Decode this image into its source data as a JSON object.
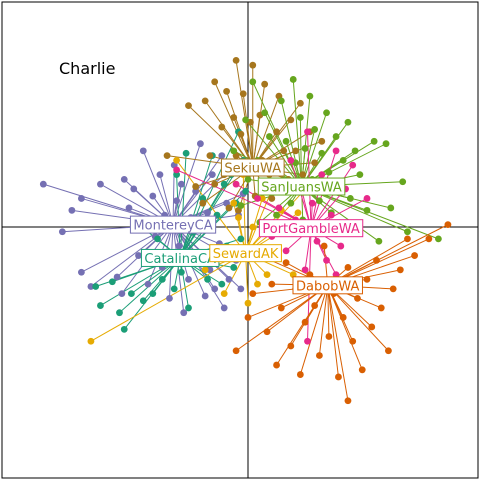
{
  "chart_data": {
    "type": "scatter",
    "title": "Charlie",
    "xlabel": "",
    "ylabel": "",
    "xlim": [
      -1,
      1
    ],
    "ylim": [
      -1,
      1
    ],
    "axes_cross": [
      0,
      0
    ],
    "grid": false,
    "series": [
      {
        "name": "MontereyCA",
        "color": "#7570b3",
        "centroid": [
          -0.315,
          0.01
        ],
        "points": [
          [
            -0.86,
            0.18
          ],
          [
            -0.78,
            -0.02
          ],
          [
            -0.74,
            0.07
          ],
          [
            -0.7,
            0.12
          ],
          [
            -0.7,
            -0.19
          ],
          [
            -0.62,
            0.18
          ],
          [
            -0.66,
            -0.25
          ],
          [
            -0.55,
            -0.21
          ],
          [
            -0.52,
            0.2
          ],
          [
            -0.5,
            0.08
          ],
          [
            -0.53,
            -0.28
          ],
          [
            -0.48,
            0.16
          ],
          [
            -0.46,
            -0.12
          ],
          [
            -0.44,
            0.32
          ],
          [
            -0.42,
            -0.24
          ],
          [
            -0.4,
            0.13
          ],
          [
            -0.39,
            -0.04
          ],
          [
            -0.37,
            0.22
          ],
          [
            -0.36,
            -0.17
          ],
          [
            -0.35,
            0.05
          ],
          [
            -0.33,
            -0.3
          ],
          [
            -0.31,
            0.26
          ],
          [
            -0.3,
            0.11
          ],
          [
            -0.29,
            -0.08
          ],
          [
            -0.28,
            0.18
          ],
          [
            -0.27,
            -0.36
          ],
          [
            -0.25,
            -0.22
          ],
          [
            -0.24,
            0.04
          ],
          [
            -0.22,
            0.15
          ],
          [
            -0.21,
            -0.13
          ],
          [
            -0.2,
            0.35
          ],
          [
            -0.18,
            -0.29
          ],
          [
            -0.17,
            0.06
          ],
          [
            -0.16,
            -0.18
          ],
          [
            -0.15,
            0.22
          ],
          [
            -0.14,
            -0.26
          ],
          [
            -0.12,
            -0.07
          ],
          [
            -0.11,
            0.3
          ],
          [
            -0.1,
            -0.34
          ],
          [
            -0.09,
            0.1
          ],
          [
            -0.08,
            -0.22
          ],
          [
            -0.07,
            0.25
          ],
          [
            -0.05,
            -0.14
          ],
          [
            -0.04,
            0.05
          ],
          [
            -0.03,
            -0.26
          ],
          [
            -0.02,
            0.14
          ]
        ]
      },
      {
        "name": "CatalinaCA",
        "color": "#1b9e77",
        "centroid": [
          -0.285,
          -0.13
        ],
        "points": [
          [
            -0.64,
            -0.25
          ],
          [
            -0.62,
            -0.33
          ],
          [
            -0.57,
            -0.23
          ],
          [
            -0.54,
            -0.36
          ],
          [
            -0.52,
            -0.43
          ],
          [
            -0.49,
            -0.28
          ],
          [
            -0.47,
            0.02
          ],
          [
            -0.44,
            -0.31
          ],
          [
            -0.4,
            -0.28
          ],
          [
            -0.38,
            -0.05
          ],
          [
            -0.36,
            -0.22
          ],
          [
            -0.34,
            -0.12
          ],
          [
            -0.31,
            -0.26
          ],
          [
            -0.3,
            0.22
          ],
          [
            -0.28,
            -0.19
          ],
          [
            -0.26,
            0.31
          ],
          [
            -0.25,
            -0.34
          ],
          [
            -0.23,
            -0.02
          ],
          [
            -0.21,
            -0.15
          ],
          [
            -0.19,
            0.12
          ],
          [
            -0.17,
            -0.22
          ],
          [
            -0.15,
            0.3
          ],
          [
            -0.13,
            0.05
          ],
          [
            -0.11,
            -0.24
          ],
          [
            -0.1,
            0.18
          ],
          [
            -0.09,
            -0.08
          ],
          [
            -0.07,
            0.22
          ],
          [
            -0.06,
            -0.17
          ],
          [
            -0.05,
            0.1
          ],
          [
            -0.04,
            0.4
          ],
          [
            -0.03,
            -0.05
          ],
          [
            -0.02,
            0.28
          ],
          [
            -0.01,
            0.15
          ]
        ]
      },
      {
        "name": "SewardAK",
        "color": "#e6ab02",
        "centroid": [
          -0.01,
          -0.11
        ],
        "points": [
          [
            -0.66,
            -0.48
          ],
          [
            -0.3,
            0.28
          ],
          [
            -0.18,
            -0.18
          ],
          [
            -0.1,
            -0.28
          ],
          [
            -0.06,
            0.1
          ],
          [
            -0.04,
            0.04
          ],
          [
            -0.02,
            0.22
          ],
          [
            0.0,
            -0.32
          ],
          [
            0.02,
            0.0
          ],
          [
            0.04,
            -0.24
          ],
          [
            0.06,
            0.12
          ],
          [
            0.08,
            -0.2
          ],
          [
            0.11,
            0.18
          ],
          [
            0.14,
            0.07
          ],
          [
            0.17,
            0.0
          ],
          [
            0.19,
            -0.2
          ],
          [
            0.21,
            0.06
          ],
          [
            0.27,
            0.19
          ]
        ]
      },
      {
        "name": "SekiuWA",
        "color": "#a6761d",
        "centroid": [
          0.02,
          0.25
        ],
        "points": [
          [
            -0.34,
            0.3
          ],
          [
            -0.25,
            0.51
          ],
          [
            -0.22,
            0.17
          ],
          [
            -0.19,
            0.1
          ],
          [
            -0.18,
            0.53
          ],
          [
            -0.16,
            0.3
          ],
          [
            -0.14,
            0.18
          ],
          [
            -0.14,
            0.61
          ],
          [
            -0.11,
            0.42
          ],
          [
            -0.1,
            0.22
          ],
          [
            -0.09,
            0.57
          ],
          [
            -0.08,
            0.08
          ],
          [
            -0.06,
            0.46
          ],
          [
            -0.05,
            0.3
          ],
          [
            -0.05,
            0.7
          ],
          [
            -0.04,
            0.07
          ],
          [
            -0.03,
            0.39
          ],
          [
            -0.02,
            0.56
          ],
          [
            0.0,
            0.22
          ],
          [
            0.01,
            0.44
          ],
          [
            0.02,
            0.68
          ],
          [
            0.03,
            0.13
          ],
          [
            0.05,
            0.47
          ],
          [
            0.06,
            0.28
          ],
          [
            0.07,
            0.6
          ],
          [
            0.09,
            0.22
          ],
          [
            0.1,
            0.12
          ],
          [
            0.12,
            0.4
          ],
          [
            0.13,
            0.55
          ],
          [
            0.15,
            0.32
          ],
          [
            0.17,
            0.2
          ],
          [
            0.18,
            0.45
          ],
          [
            0.2,
            0.32
          ],
          [
            0.22,
            0.52
          ],
          [
            0.23,
            0.22
          ],
          [
            0.26,
            0.4
          ],
          [
            0.28,
            0.27
          ],
          [
            0.31,
            0.36
          ]
        ]
      },
      {
        "name": "SanJuansWA",
        "color": "#66a61e",
        "centroid": [
          0.225,
          0.17
        ],
        "points": [
          [
            -0.06,
            0.32
          ],
          [
            -0.03,
            0.09
          ],
          [
            -0.01,
            0.45
          ],
          [
            0.0,
            0.2
          ],
          [
            0.02,
            0.61
          ],
          [
            0.04,
            0.28
          ],
          [
            0.05,
            0.02
          ],
          [
            0.07,
            0.48
          ],
          [
            0.08,
            0.15
          ],
          [
            0.09,
            0.38
          ],
          [
            0.11,
            0.25
          ],
          [
            0.12,
            0.05
          ],
          [
            0.14,
            0.53
          ],
          [
            0.15,
            0.18
          ],
          [
            0.16,
            0.36
          ],
          [
            0.18,
            0.1
          ],
          [
            0.19,
            0.62
          ],
          [
            0.2,
            0.27
          ],
          [
            0.22,
            0.46
          ],
          [
            0.23,
            0.03
          ],
          [
            0.24,
            0.33
          ],
          [
            0.26,
            0.55
          ],
          [
            0.27,
            0.2
          ],
          [
            0.28,
            0.41
          ],
          [
            0.3,
            0.11
          ],
          [
            0.31,
            0.31
          ],
          [
            0.33,
            0.48
          ],
          [
            0.34,
            0.23
          ],
          [
            0.35,
            0.06
          ],
          [
            0.37,
            0.38
          ],
          [
            0.38,
            0.16
          ],
          [
            0.4,
            0.28
          ],
          [
            0.42,
            0.44
          ],
          [
            0.43,
            0.12
          ],
          [
            0.45,
            0.32
          ],
          [
            0.47,
            0.22
          ],
          [
            0.5,
            0.07
          ],
          [
            0.53,
            0.36
          ],
          [
            0.55,
            -0.06
          ],
          [
            0.58,
            0.35
          ],
          [
            0.6,
            0.08
          ],
          [
            0.67,
            -0.02
          ],
          [
            0.8,
            -0.05
          ],
          [
            0.65,
            0.19
          ]
        ]
      },
      {
        "name": "PortGambleWA",
        "color": "#e7298a",
        "centroid": [
          0.265,
          -0.005
        ],
        "points": [
          [
            -0.3,
            0.24
          ],
          [
            -0.05,
            0.18
          ],
          [
            0.04,
            0.12
          ],
          [
            0.1,
            -0.04
          ],
          [
            0.13,
            0.08
          ],
          [
            0.16,
            -0.1
          ],
          [
            0.18,
            0.28
          ],
          [
            0.2,
            0.03
          ],
          [
            0.22,
            0.18
          ],
          [
            0.24,
            -0.18
          ],
          [
            0.25,
            0.4
          ],
          [
            0.27,
            0.1
          ],
          [
            0.29,
            -0.06
          ],
          [
            0.31,
            0.22
          ],
          [
            0.33,
            -0.14
          ],
          [
            0.35,
            0.05
          ],
          [
            0.37,
            0.32
          ],
          [
            0.39,
            -0.08
          ],
          [
            0.41,
            0.16
          ],
          [
            0.44,
            0.26
          ],
          [
            0.46,
            -0.02
          ],
          [
            0.5,
            0.12
          ],
          [
            0.25,
            -0.48
          ],
          [
            0.37,
            -0.2
          ]
        ]
      },
      {
        "name": "DabobWA",
        "color": "#d95f02",
        "centroid": [
          0.335,
          -0.245
        ],
        "points": [
          [
            -0.05,
            -0.52
          ],
          [
            0.0,
            -0.38
          ],
          [
            0.02,
            -0.28
          ],
          [
            0.05,
            -0.12
          ],
          [
            0.08,
            -0.44
          ],
          [
            0.1,
            -0.24
          ],
          [
            0.12,
            -0.58
          ],
          [
            0.14,
            -0.34
          ],
          [
            0.16,
            -0.15
          ],
          [
            0.18,
            -0.5
          ],
          [
            0.2,
            -0.26
          ],
          [
            0.22,
            -0.62
          ],
          [
            0.24,
            -0.4
          ],
          [
            0.26,
            -0.2
          ],
          [
            0.28,
            -0.33
          ],
          [
            0.3,
            -0.54
          ],
          [
            0.32,
            -0.08
          ],
          [
            0.34,
            -0.46
          ],
          [
            0.36,
            -0.28
          ],
          [
            0.38,
            -0.63
          ],
          [
            0.4,
            -0.38
          ],
          [
            0.42,
            -0.17
          ],
          [
            0.44,
            -0.48
          ],
          [
            0.46,
            -0.3
          ],
          [
            0.48,
            -0.6
          ],
          [
            0.5,
            -0.22
          ],
          [
            0.52,
            -0.42
          ],
          [
            0.54,
            -0.14
          ],
          [
            0.56,
            -0.34
          ],
          [
            0.59,
            -0.52
          ],
          [
            0.61,
            -0.26
          ],
          [
            0.64,
            -0.18
          ],
          [
            0.67,
            -0.05
          ],
          [
            0.7,
            -0.12
          ],
          [
            0.76,
            -0.05
          ],
          [
            0.84,
            0.01
          ],
          [
            0.42,
            -0.73
          ]
        ]
      }
    ]
  }
}
